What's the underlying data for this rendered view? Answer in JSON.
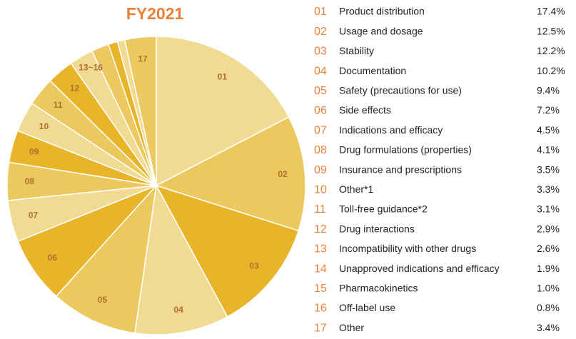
{
  "chart_data": {
    "type": "pie",
    "title": "FY2021",
    "codes": [
      "01",
      "02",
      "03",
      "04",
      "05",
      "06",
      "07",
      "08",
      "09",
      "10",
      "11",
      "12",
      "13",
      "14",
      "15",
      "16",
      "17"
    ],
    "categories": [
      "Product distribution",
      "Usage and dosage",
      "Stability",
      "Documentation",
      "Safety (precautions for use)",
      "Side effects",
      "Indications and efficacy",
      "Drug formulations (properties)",
      "Insurance and prescriptions",
      "Other*1",
      "Toll-free guidance*2",
      "Drug interactions",
      "Incompatibility with other drugs",
      "Unapproved indications and efficacy",
      "Pharmacokinetics",
      "Off-label use",
      "Other"
    ],
    "values": [
      17.4,
      12.5,
      12.2,
      10.2,
      9.4,
      7.2,
      4.5,
      4.1,
      3.5,
      3.3,
      3.1,
      2.9,
      2.6,
      1.9,
      1.0,
      0.8,
      3.4
    ],
    "value_labels": [
      "17.4%",
      "12.5%",
      "12.2%",
      "10.2%",
      "9.4%",
      "7.2%",
      "4.5%",
      "4.1%",
      "3.5%",
      "3.3%",
      "3.1%",
      "2.9%",
      "2.6%",
      "1.9%",
      "1.0%",
      "0.8%",
      "3.4%"
    ],
    "colors": [
      "#f1da92",
      "#ecc95e",
      "#e8b42a",
      "#f1da92",
      "#ecc95e",
      "#e8b42a",
      "#f1da92",
      "#ecc95e",
      "#e8b42a",
      "#f1da92",
      "#ecc95e",
      "#e8b42a",
      "#f1da92",
      "#ecc95e",
      "#e8b42a",
      "#f1da92",
      "#ecc95e"
    ],
    "slice_labeled": 12,
    "group_label": "13~16"
  }
}
